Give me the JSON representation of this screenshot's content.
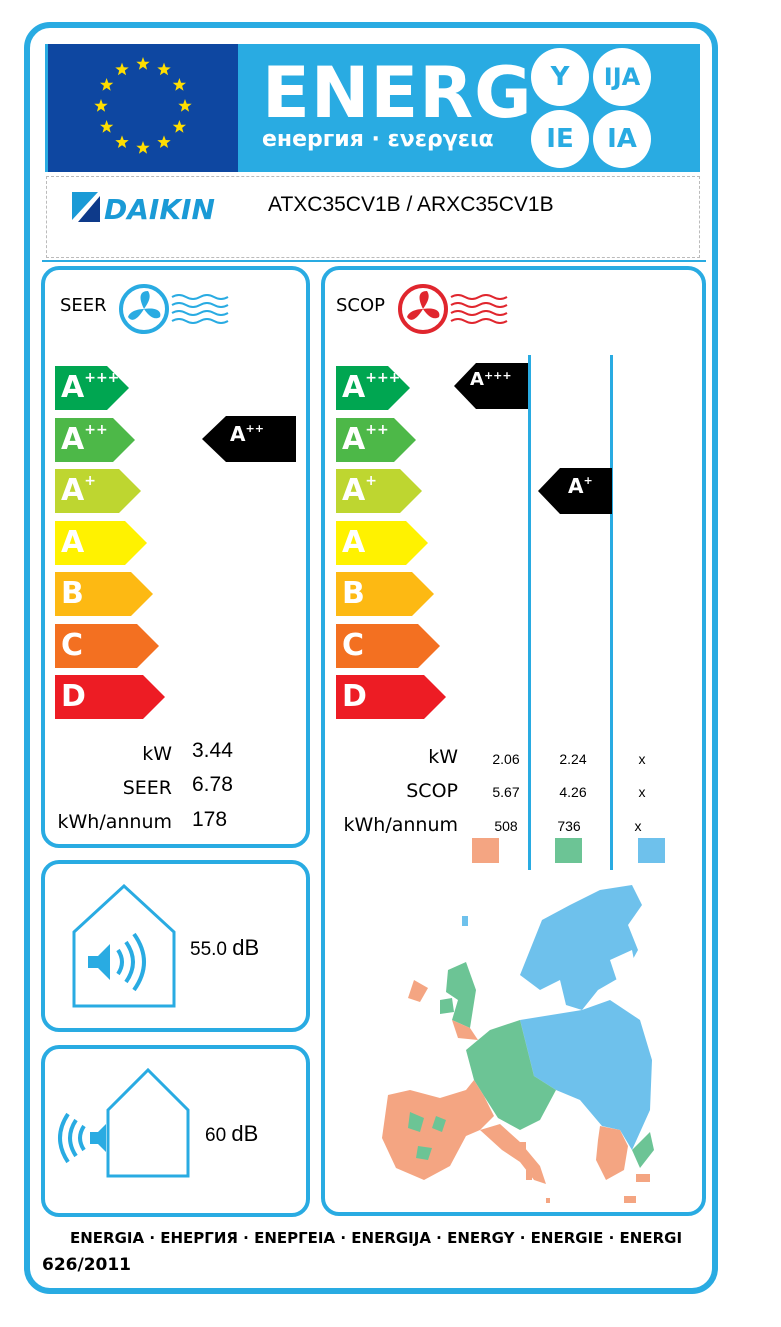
{
  "header": {
    "title": "ENERG",
    "subtitle": "енергия · ενεργεια",
    "suffixes": [
      "Y",
      "IJA",
      "IE",
      "IA"
    ]
  },
  "supplier": {
    "brand": "DAIKIN",
    "model": "ATXC35CV1B / ARXC35CV1B"
  },
  "scale": [
    {
      "letter": "A",
      "sup": "+++",
      "color": "#00a651"
    },
    {
      "letter": "A",
      "sup": "++",
      "color": "#4db848"
    },
    {
      "letter": "A",
      "sup": "+",
      "color": "#bed630"
    },
    {
      "letter": "A",
      "sup": "",
      "color": "#fff200"
    },
    {
      "letter": "B",
      "sup": "",
      "color": "#fdb913"
    },
    {
      "letter": "C",
      "sup": "",
      "color": "#f37021"
    },
    {
      "letter": "D",
      "sup": "",
      "color": "#ed1c24"
    }
  ],
  "seer": {
    "title": "SEER",
    "class_letter": "A",
    "class_sup": "++",
    "labels": [
      "kW",
      "SEER",
      "kWh/annum"
    ],
    "values": [
      "3.44",
      "6.78",
      "178"
    ]
  },
  "scop": {
    "title": "SCOP",
    "labels": [
      "kW",
      "SCOP",
      "kWh/annum"
    ],
    "columns": [
      {
        "class_letter": "A",
        "class_sup": "+++",
        "values": [
          "2.06",
          "5.67",
          "508"
        ],
        "color": "#f4a582"
      },
      {
        "class_letter": "A",
        "class_sup": "+",
        "values": [
          "2.24",
          "4.26",
          "736"
        ],
        "color": "#6cc495"
      },
      {
        "class_letter": "",
        "class_sup": "",
        "values": [
          "x",
          "x",
          "x"
        ],
        "color": "#6ec1ec"
      }
    ]
  },
  "noise_indoor": {
    "value": "55.0",
    "unit": "dB"
  },
  "noise_outdoor": {
    "value": "60",
    "unit": "dB"
  },
  "footer": {
    "languages": "ENERGIA · ЕНЕРГИЯ · ΕΝΕΡΓΕΙΑ · ENERGIJA · ENERGY · ENERGIE · ENERGI",
    "regulation": "626/2011"
  },
  "colors": {
    "frame": "#29abe2",
    "flag": "#0e47a1",
    "star": "#ffde00",
    "heating_icon": "#e0262e"
  }
}
